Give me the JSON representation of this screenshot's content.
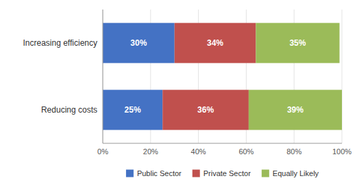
{
  "chart_data": {
    "type": "bar",
    "orientation": "horizontal",
    "stacked": true,
    "categories": [
      "Increasing efficiency",
      "Reducing costs"
    ],
    "series": [
      {
        "name": "Public Sector",
        "color": "#4472C4",
        "values": [
          30,
          25
        ],
        "value_labels": [
          "30%",
          "25%"
        ]
      },
      {
        "name": "Private Sector",
        "color": "#C0504D",
        "values": [
          34,
          36
        ],
        "value_labels": [
          "34%",
          "36%"
        ]
      },
      {
        "name": "Equally Likely",
        "color": "#9BBB59",
        "values": [
          35,
          39
        ],
        "value_labels": [
          "35%",
          "39%"
        ]
      }
    ],
    "xlim": [
      0,
      100
    ],
    "xticks": [
      {
        "value": 0,
        "label": "0%"
      },
      {
        "value": 20,
        "label": "20%"
      },
      {
        "value": 40,
        "label": "40%"
      },
      {
        "value": 60,
        "label": "60%"
      },
      {
        "value": 80,
        "label": "80%"
      },
      {
        "value": 100,
        "label": "100%"
      }
    ],
    "grid": true,
    "legend": "bottom",
    "data_labels": true
  }
}
